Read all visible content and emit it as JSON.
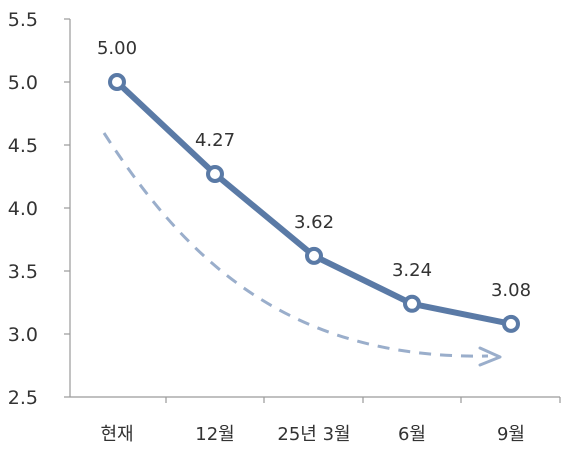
{
  "chart_data": {
    "type": "line",
    "categories": [
      "현재",
      "12월",
      "25년 3월",
      "6월",
      "9월"
    ],
    "series": [
      {
        "values": [
          5.0,
          4.27,
          3.62,
          3.24,
          3.08
        ],
        "data_labels": [
          "5.00",
          "4.27",
          "3.62",
          "3.24",
          "3.08"
        ],
        "color": "#5a7aa6"
      }
    ],
    "yticks": [
      "5.5",
      "5.0",
      "4.5",
      "4.0",
      "3.5",
      "3.0",
      "2.5"
    ],
    "ylim": [
      2.5,
      5.5
    ],
    "trend_arrow": {
      "style": "dashed",
      "color": "#9aaecb",
      "direction": "down-right"
    },
    "grid": false
  }
}
